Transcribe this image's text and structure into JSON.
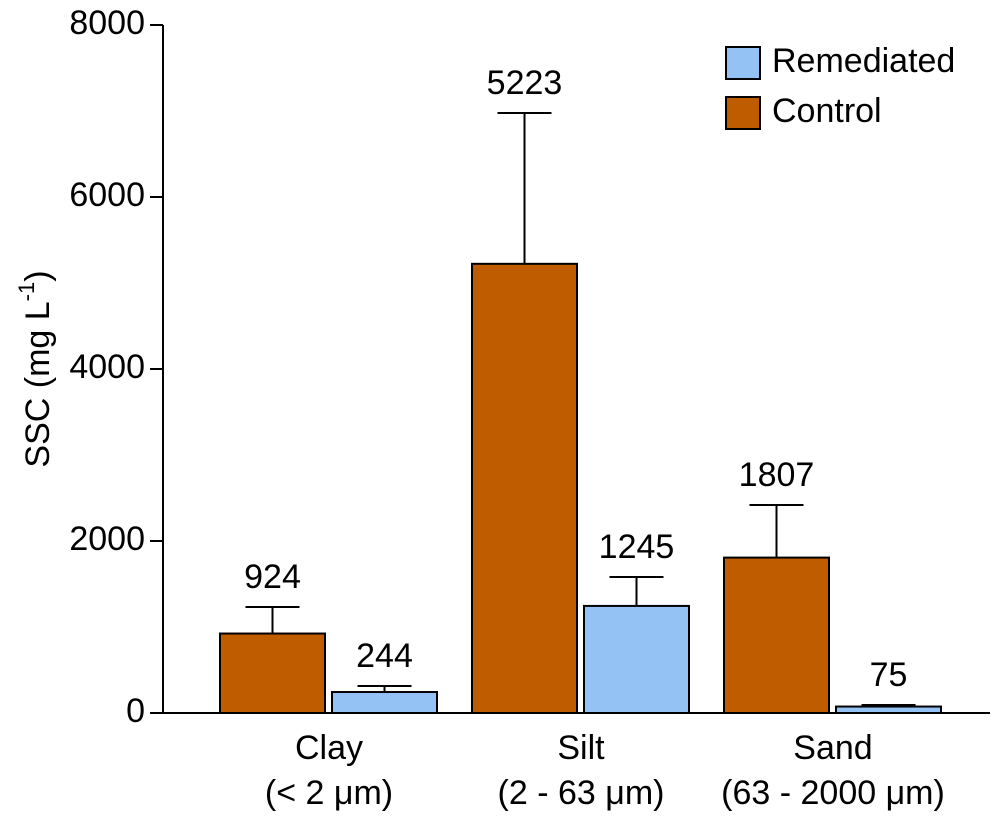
{
  "chart_data": {
    "type": "bar",
    "y_label": [
      "SSC (mg L",
      "-1",
      ")"
    ],
    "categories": [
      [
        "Clay",
        "(< 2 μm)"
      ],
      [
        "Silt",
        "(2 - 63 μm)"
      ],
      [
        "Sand",
        "(63 - 2000 μm)"
      ]
    ],
    "series": [
      {
        "name": "Control",
        "color": "#c05c00",
        "values": [
          924,
          5223,
          1807
        ],
        "errors": [
          309,
          1754,
          612
        ]
      },
      {
        "name": "Remediated",
        "color": "#94c2f5",
        "values": [
          244,
          1245,
          75
        ],
        "errors": [
          70,
          336,
          18
        ]
      }
    ],
    "legend_order": [
      1,
      0
    ],
    "legend": "upper right",
    "ylim": [
      0,
      8000
    ],
    "yticks": [
      0,
      2000,
      4000,
      6000,
      8000
    ]
  }
}
